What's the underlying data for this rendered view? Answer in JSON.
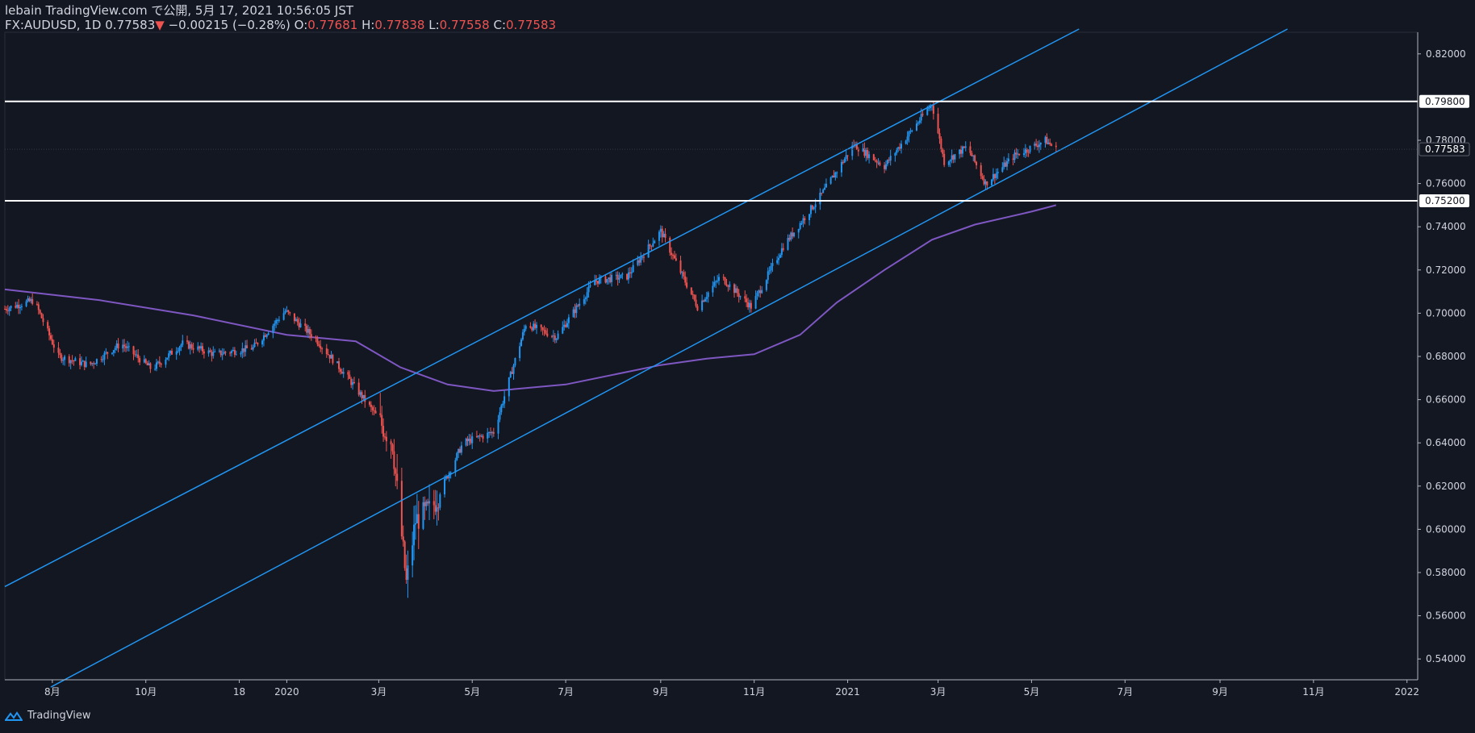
{
  "header": {
    "line1": "lebain TradingView.com で公開, 5月 17, 2021 10:56:05 JST",
    "symbol": "FX:AUDUSD, 1D",
    "price": "0.77583",
    "arrow": "▼",
    "change": "−0.00215 (−0.28%)",
    "o_label": "O:",
    "o_value": "0.77681",
    "h_label": "H:",
    "h_value": "0.77838",
    "l_label": "L:",
    "l_value": "0.77558",
    "c_label": "C:",
    "c_value": "0.77583"
  },
  "footer": {
    "brand": "TradingView"
  },
  "colors": {
    "background": "#131722",
    "up": "#2196f3",
    "down": "#ef5350",
    "channel": "#2196f3",
    "ma": "#7e57c2",
    "hline": "#ffffff"
  },
  "chart_data": {
    "type": "candlestick",
    "symbol": "FX:AUDUSD",
    "timeframe": "1D",
    "ylim": [
      0.53,
      0.83
    ],
    "y_ticks": [
      0.54,
      0.56,
      0.58,
      0.6,
      0.62,
      0.64,
      0.66,
      0.68,
      0.7,
      0.72,
      0.74,
      0.76,
      0.78,
      0.82
    ],
    "y_tick_labels": [
      "0.54000",
      "0.56000",
      "0.58000",
      "0.60000",
      "0.62000",
      "0.64000",
      "0.66000",
      "0.68000",
      "0.70000",
      "0.72000",
      "0.74000",
      "0.76000",
      "0.78000",
      "0.82000"
    ],
    "x_range": [
      "2019-07-01",
      "2022-01-08"
    ],
    "x_ticks": [
      {
        "date": "2019-08-01",
        "label": "8月"
      },
      {
        "date": "2019-10-01",
        "label": "10月"
      },
      {
        "date": "2019-12-01",
        "label": "18"
      },
      {
        "date": "2020-01-01",
        "label": "2020"
      },
      {
        "date": "2020-03-01",
        "label": "3月"
      },
      {
        "date": "2020-05-01",
        "label": "5月"
      },
      {
        "date": "2020-07-01",
        "label": "7月"
      },
      {
        "date": "2020-09-01",
        "label": "9月"
      },
      {
        "date": "2020-11-01",
        "label": "11月"
      },
      {
        "date": "2021-01-01",
        "label": "2021"
      },
      {
        "date": "2021-03-01",
        "label": "3月"
      },
      {
        "date": "2021-05-01",
        "label": "5月"
      },
      {
        "date": "2021-07-01",
        "label": "7月"
      },
      {
        "date": "2021-09-01",
        "label": "9月"
      },
      {
        "date": "2021-11-01",
        "label": "11月"
      },
      {
        "date": "2022-01-01",
        "label": "2022"
      }
    ],
    "horizontal_lines": [
      {
        "value": 0.798,
        "label": "0.79800"
      },
      {
        "value": 0.752,
        "label": "0.75200"
      }
    ],
    "last_price": {
      "value": 0.77583,
      "label": "0.77583"
    },
    "channel_lines": [
      {
        "from": {
          "date": "2019-07-01",
          "value": 0.5735
        },
        "to": {
          "date": "2021-06-01",
          "value": 0.8315
        }
      },
      {
        "from": {
          "date": "2019-07-31",
          "value": 0.527
        },
        "to": {
          "date": "2021-10-15",
          "value": 0.8315
        }
      }
    ],
    "moving_average": {
      "name": "",
      "points": [
        [
          "2019-07-01",
          0.711
        ],
        [
          "2019-09-01",
          0.706
        ],
        [
          "2019-11-01",
          0.699
        ],
        [
          "2020-01-01",
          0.69
        ],
        [
          "2020-02-15",
          0.687
        ],
        [
          "2020-03-15",
          0.675
        ],
        [
          "2020-04-15",
          0.667
        ],
        [
          "2020-05-15",
          0.664
        ],
        [
          "2020-07-01",
          0.667
        ],
        [
          "2020-09-01",
          0.676
        ],
        [
          "2020-10-01",
          0.679
        ],
        [
          "2020-11-01",
          0.681
        ],
        [
          "2020-12-01",
          0.69
        ],
        [
          "2020-12-25",
          0.705
        ],
        [
          "2021-01-25",
          0.72
        ],
        [
          "2021-02-25",
          0.734
        ],
        [
          "2021-03-25",
          0.741
        ],
        [
          "2021-05-01",
          0.747
        ],
        [
          "2021-05-17",
          0.75
        ]
      ]
    },
    "price_path": [
      [
        "2019-07-01",
        0.702
      ],
      [
        "2019-07-20",
        0.706
      ],
      [
        "2019-08-05",
        0.68
      ],
      [
        "2019-08-25",
        0.676
      ],
      [
        "2019-09-15",
        0.686
      ],
      [
        "2019-10-05",
        0.674
      ],
      [
        "2019-10-25",
        0.686
      ],
      [
        "2019-11-15",
        0.681
      ],
      [
        "2019-12-10",
        0.684
      ],
      [
        "2019-12-31",
        0.701
      ],
      [
        "2020-01-20",
        0.688
      ],
      [
        "2020-02-10",
        0.67
      ],
      [
        "2020-02-28",
        0.653
      ],
      [
        "2020-03-10",
        0.64
      ],
      [
        "2020-03-19",
        0.575
      ],
      [
        "2020-03-25",
        0.604
      ],
      [
        "2020-04-05",
        0.61
      ],
      [
        "2020-04-25",
        0.64
      ],
      [
        "2020-05-15",
        0.645
      ],
      [
        "2020-06-05",
        0.695
      ],
      [
        "2020-06-25",
        0.689
      ],
      [
        "2020-07-20",
        0.715
      ],
      [
        "2020-08-10",
        0.717
      ],
      [
        "2020-09-01",
        0.738
      ],
      [
        "2020-09-25",
        0.703
      ],
      [
        "2020-10-10",
        0.717
      ],
      [
        "2020-10-30",
        0.703
      ],
      [
        "2020-11-20",
        0.731
      ],
      [
        "2020-12-15",
        0.755
      ],
      [
        "2021-01-05",
        0.778
      ],
      [
        "2021-01-25",
        0.768
      ],
      [
        "2021-02-25",
        0.797
      ],
      [
        "2021-03-05",
        0.77
      ],
      [
        "2021-03-20",
        0.777
      ],
      [
        "2021-04-01",
        0.76
      ],
      [
        "2021-04-20",
        0.773
      ],
      [
        "2021-05-10",
        0.78
      ],
      [
        "2021-05-17",
        0.77583
      ]
    ]
  }
}
